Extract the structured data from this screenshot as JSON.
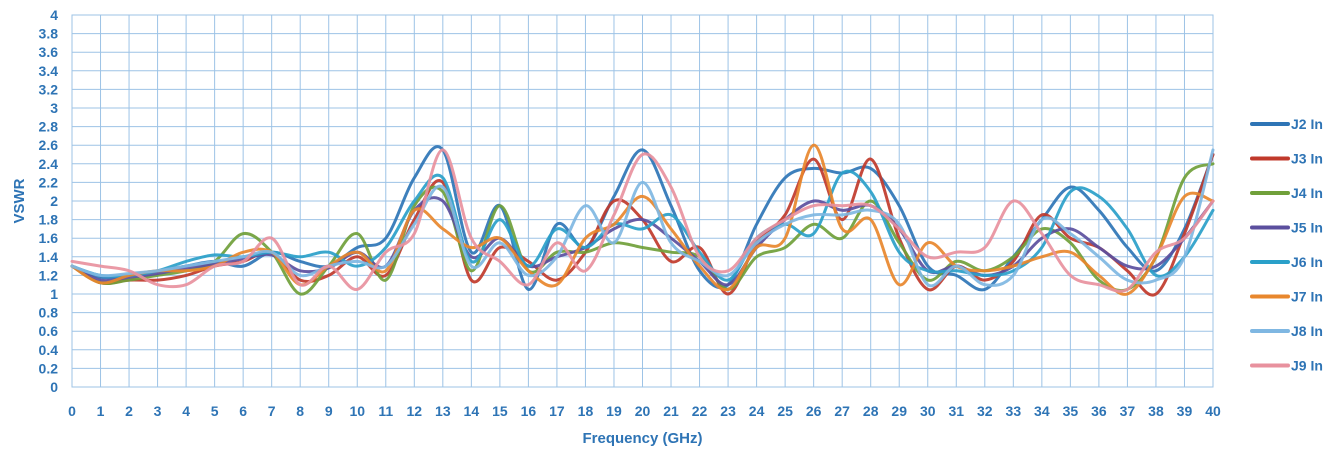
{
  "chart_data": {
    "type": "line",
    "title": "",
    "xlabel": "Frequency (GHz)",
    "ylabel": "VSWR",
    "xlim": [
      0,
      40
    ],
    "ylim": [
      0,
      4
    ],
    "x_ticks": [
      "0",
      "1",
      "2",
      "3",
      "4",
      "5",
      "6",
      "7",
      "8",
      "9",
      "10",
      "11",
      "12",
      "13",
      "14",
      "15",
      "16",
      "17",
      "18",
      "19",
      "20",
      "21",
      "22",
      "23",
      "24",
      "25",
      "26",
      "27",
      "28",
      "29",
      "30",
      "31",
      "32",
      "33",
      "34",
      "35",
      "36",
      "37",
      "38",
      "39",
      "40"
    ],
    "y_ticks": [
      "0",
      "0.2",
      "0.4",
      "0.6",
      "0.8",
      "1",
      "1.2",
      "1.4",
      "1.6",
      "1.8",
      "2",
      "2.2",
      "2.4",
      "2.6",
      "2.8",
      "3",
      "3.2",
      "3.4",
      "3.6",
      "3.8",
      "4"
    ],
    "grid": true,
    "legend_position": "right",
    "x": [
      0,
      1,
      2,
      3,
      4,
      5,
      6,
      7,
      8,
      9,
      10,
      11,
      12,
      13,
      14,
      15,
      16,
      17,
      18,
      19,
      20,
      21,
      22,
      23,
      24,
      25,
      26,
      27,
      28,
      29,
      30,
      31,
      32,
      33,
      34,
      35,
      36,
      37,
      38,
      39,
      40
    ],
    "series": [
      {
        "name": "J2 In",
        "color": "#2E75B6",
        "values": [
          1.3,
          1.18,
          1.2,
          1.25,
          1.3,
          1.35,
          1.3,
          1.45,
          1.35,
          1.3,
          1.5,
          1.6,
          2.25,
          2.55,
          1.45,
          1.95,
          1.05,
          1.75,
          1.5,
          2.05,
          2.55,
          1.95,
          1.25,
          1.1,
          1.75,
          2.25,
          2.35,
          2.3,
          2.35,
          1.95,
          1.3,
          1.2,
          1.05,
          1.4,
          1.8,
          2.15,
          1.9,
          1.5,
          1.25,
          1.7,
          2.5
        ]
      },
      {
        "name": "J3 In",
        "color": "#C0392B",
        "values": [
          1.3,
          1.12,
          1.15,
          1.15,
          1.2,
          1.3,
          1.35,
          1.45,
          1.15,
          1.2,
          1.4,
          1.2,
          1.8,
          2.2,
          1.15,
          1.5,
          1.35,
          1.15,
          1.45,
          2.0,
          1.8,
          1.35,
          1.5,
          1.0,
          1.55,
          1.85,
          2.45,
          1.8,
          2.45,
          1.6,
          1.05,
          1.3,
          1.15,
          1.35,
          1.85,
          1.6,
          1.5,
          1.25,
          1.0,
          1.65,
          2.5
        ]
      },
      {
        "name": "J4 In",
        "color": "#70A03A",
        "values": [
          1.3,
          1.12,
          1.15,
          1.2,
          1.25,
          1.35,
          1.65,
          1.45,
          1.0,
          1.3,
          1.65,
          1.15,
          1.95,
          2.1,
          1.25,
          1.95,
          1.25,
          1.45,
          1.45,
          1.55,
          1.5,
          1.45,
          1.4,
          1.05,
          1.4,
          1.5,
          1.75,
          1.6,
          2.0,
          1.55,
          1.15,
          1.35,
          1.25,
          1.4,
          1.7,
          1.55,
          1.15,
          1.05,
          1.4,
          2.25,
          2.4
        ]
      },
      {
        "name": "J5 In",
        "color": "#5B4F9E",
        "values": [
          1.3,
          1.15,
          1.18,
          1.22,
          1.28,
          1.32,
          1.38,
          1.42,
          1.25,
          1.28,
          1.45,
          1.3,
          1.9,
          2.0,
          1.4,
          1.6,
          1.3,
          1.4,
          1.5,
          1.7,
          1.8,
          1.6,
          1.35,
          1.1,
          1.5,
          1.8,
          2.0,
          1.9,
          1.95,
          1.7,
          1.25,
          1.3,
          1.2,
          1.3,
          1.6,
          1.7,
          1.5,
          1.3,
          1.3,
          1.6,
          2.0
        ]
      },
      {
        "name": "J6 In",
        "color": "#2AA0C9",
        "values": [
          1.3,
          1.2,
          1.2,
          1.25,
          1.35,
          1.42,
          1.4,
          1.45,
          1.4,
          1.45,
          1.3,
          1.5,
          2.0,
          2.25,
          1.35,
          1.8,
          1.3,
          1.7,
          1.5,
          1.75,
          1.7,
          1.85,
          1.45,
          1.15,
          1.6,
          1.75,
          1.65,
          2.3,
          2.1,
          1.45,
          1.25,
          1.25,
          1.2,
          1.25,
          1.5,
          2.1,
          2.05,
          1.7,
          1.2,
          1.4,
          1.9
        ]
      },
      {
        "name": "J7 In",
        "color": "#E8872D",
        "values": [
          1.3,
          1.12,
          1.2,
          1.25,
          1.25,
          1.3,
          1.45,
          1.45,
          1.1,
          1.3,
          1.45,
          1.25,
          1.9,
          1.7,
          1.5,
          1.6,
          1.25,
          1.1,
          1.6,
          1.75,
          2.05,
          1.7,
          1.3,
          1.05,
          1.5,
          1.6,
          2.6,
          1.7,
          1.8,
          1.1,
          1.55,
          1.3,
          1.25,
          1.3,
          1.4,
          1.45,
          1.2,
          1.0,
          1.4,
          2.05,
          2.0
        ]
      },
      {
        "name": "J8 In",
        "color": "#7FB7E2",
        "values": [
          1.3,
          1.2,
          1.22,
          1.25,
          1.3,
          1.35,
          1.4,
          1.45,
          1.2,
          1.3,
          1.35,
          1.3,
          1.75,
          2.15,
          1.3,
          1.55,
          1.2,
          1.4,
          1.95,
          1.55,
          2.2,
          1.55,
          1.35,
          1.2,
          1.55,
          1.75,
          1.85,
          1.85,
          1.9,
          1.75,
          1.1,
          1.3,
          1.1,
          1.2,
          1.8,
          1.65,
          1.4,
          1.15,
          1.15,
          1.4,
          2.55
        ]
      },
      {
        "name": "J9 In",
        "color": "#E8919E",
        "values": [
          1.35,
          1.3,
          1.25,
          1.1,
          1.1,
          1.3,
          1.35,
          1.6,
          1.1,
          1.3,
          1.05,
          1.45,
          1.65,
          2.55,
          1.6,
          1.35,
          1.1,
          1.55,
          1.25,
          1.85,
          2.5,
          2.15,
          1.4,
          1.25,
          1.6,
          1.8,
          1.95,
          1.95,
          1.95,
          1.7,
          1.4,
          1.45,
          1.5,
          2.0,
          1.65,
          1.2,
          1.1,
          1.05,
          1.45,
          1.6,
          2.0
        ]
      }
    ]
  }
}
